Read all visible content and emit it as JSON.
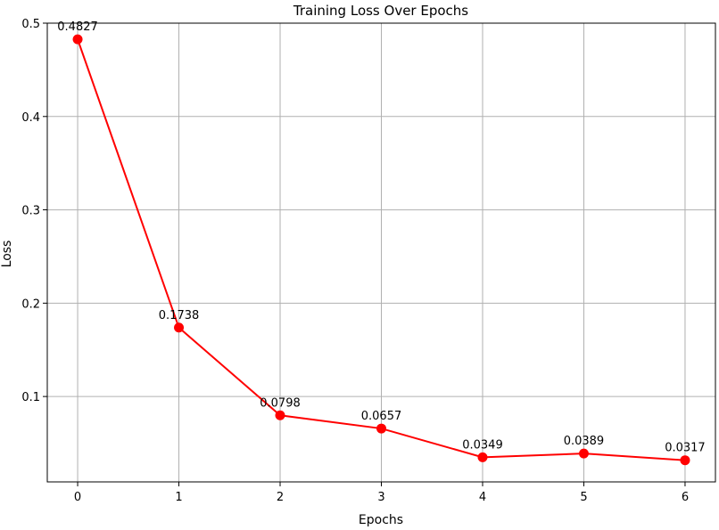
{
  "chart_data": {
    "type": "line",
    "title": "Training Loss Over Epochs",
    "xlabel": "Epochs",
    "ylabel": "Loss",
    "x": [
      0,
      1,
      2,
      3,
      4,
      5,
      6
    ],
    "series": [
      {
        "values": [
          0.4827,
          0.1738,
          0.0798,
          0.0657,
          0.0349,
          0.0389,
          0.0317
        ],
        "color": "#ff0000",
        "marker": "circle"
      }
    ],
    "data_labels": [
      "0.4827",
      "0.1738",
      "0.0798",
      "0.0657",
      "0.0349",
      "0.0389",
      "0.0317"
    ],
    "x_ticks": [
      0,
      1,
      2,
      3,
      4,
      5,
      6
    ],
    "x_tick_labels": [
      "0",
      "1",
      "2",
      "3",
      "4",
      "5",
      "6"
    ],
    "y_ticks": [
      0.1,
      0.2,
      0.3,
      0.4,
      0.5
    ],
    "y_tick_labels": [
      "0.1",
      "0.2",
      "0.3",
      "0.4",
      "0.5"
    ],
    "xlim": [
      -0.3,
      6.3
    ],
    "ylim": [
      0.0085,
      0.5
    ],
    "grid": true,
    "legend": "none"
  }
}
